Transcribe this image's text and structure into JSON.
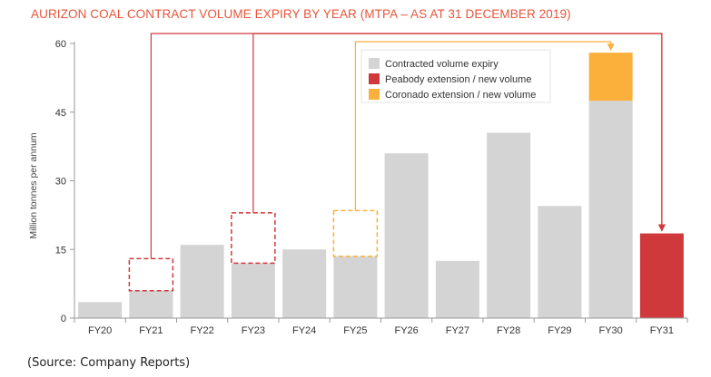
{
  "chart_data": {
    "type": "bar",
    "title": "AURIZON COAL CONTRACT VOLUME EXPIRY BY YEAR (MTPA – AS AT 31 DECEMBER 2019)",
    "ylabel": "Million tonnes per annum",
    "xlabel": "",
    "ylim": [
      0,
      60
    ],
    "yticks": [
      0,
      15,
      30,
      45,
      60
    ],
    "categories": [
      "FY20",
      "FY21",
      "FY22",
      "FY23",
      "FY24",
      "FY25",
      "FY26",
      "FY27",
      "FY28",
      "FY29",
      "FY30",
      "FY31"
    ],
    "series": [
      {
        "name": "Contracted volume expiry",
        "color": "#d4d4d4",
        "values": [
          3.5,
          6,
          16,
          12,
          15,
          13.5,
          36,
          12.5,
          40.5,
          24.5,
          47.5,
          0
        ]
      },
      {
        "name": "Peabody extension / new volume",
        "color": "#d0393b",
        "values": [
          0,
          0,
          0,
          0,
          0,
          0,
          0,
          0,
          0,
          0,
          0,
          18.5
        ]
      },
      {
        "name": "Coronado extension / new volume",
        "color": "#fbb03b",
        "values": [
          0,
          0,
          0,
          0,
          0,
          0,
          0,
          0,
          0,
          0,
          10.5,
          0
        ]
      }
    ],
    "dashed_boxes": [
      {
        "category": "FY21",
        "from": 6,
        "to": 13,
        "color": "#d0393b"
      },
      {
        "category": "FY23",
        "from": 12,
        "to": 23,
        "color": "#d0393b"
      },
      {
        "category": "FY25",
        "from": 13.5,
        "to": 23.5,
        "color": "#fbb03b"
      }
    ],
    "arrows": [
      {
        "from": "FY21",
        "to": "FY31",
        "color": "#d0393b"
      },
      {
        "from": "FY23",
        "to": "FY31",
        "color": "#d0393b"
      },
      {
        "from": "FY25",
        "to": "FY30",
        "color": "#fbb03b"
      }
    ],
    "legend_position": "top-right"
  },
  "source": "(Source: Company Reports)"
}
